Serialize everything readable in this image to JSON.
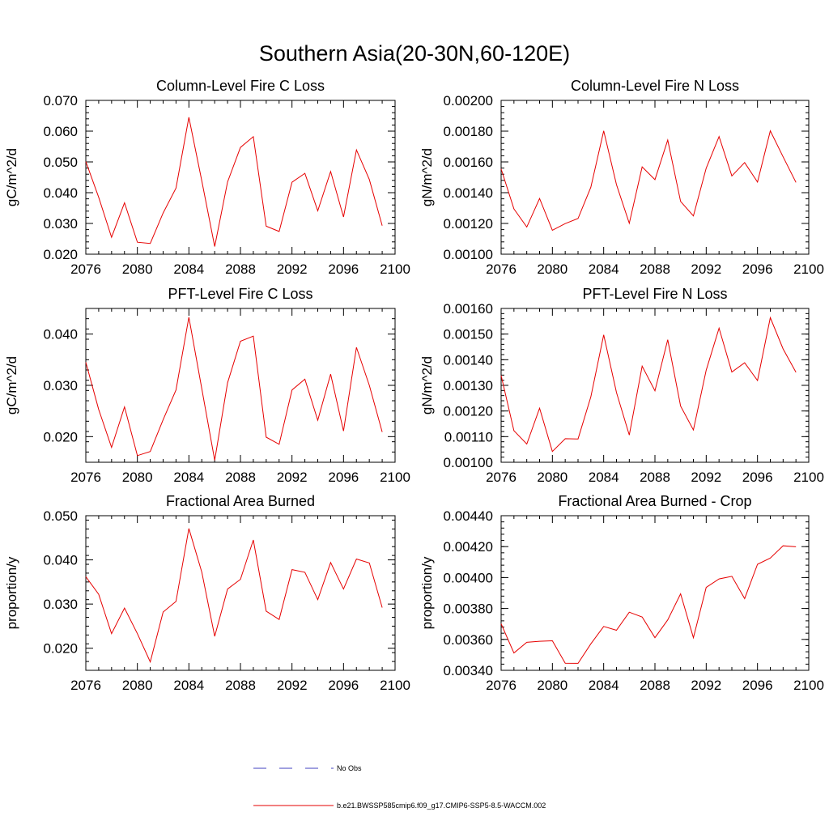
{
  "title": "Southern Asia(20-30N,60-120E)",
  "colors": {
    "series": "#e60000",
    "noobs": "#4040c0",
    "axis": "#000000"
  },
  "legend": {
    "noobs_label": "No Obs",
    "model_label": "b.e21.BWSSP585cmip6.f09_g17.CMIP6-SSP5-8.5-WACCM.002"
  },
  "chart_data": [
    {
      "type": "line",
      "title": "Column-Level Fire C Loss",
      "xlabel": "",
      "ylabel": "gC/m^2/d",
      "xlim": [
        2076,
        2100
      ],
      "ylim": [
        0.02,
        0.07
      ],
      "xticks": [
        2076,
        2080,
        2084,
        2088,
        2092,
        2096,
        2100
      ],
      "yticks": [
        0.02,
        0.03,
        0.04,
        0.05,
        0.06,
        0.07
      ],
      "ytick_labels": [
        "0.020",
        "0.030",
        "0.040",
        "0.050",
        "0.060",
        "0.070"
      ],
      "x": [
        2076,
        2077,
        2078,
        2079,
        2080,
        2081,
        2082,
        2083,
        2084,
        2085,
        2086,
        2087,
        2088,
        2089,
        2090,
        2091,
        2092,
        2093,
        2094,
        2095,
        2096,
        2097,
        2098,
        2099
      ],
      "values": [
        0.0501,
        0.0385,
        0.0255,
        0.0367,
        0.0239,
        0.0235,
        0.0334,
        0.0415,
        0.0645,
        0.0438,
        0.0225,
        0.0435,
        0.0547,
        0.0582,
        0.0291,
        0.0274,
        0.0434,
        0.0463,
        0.0341,
        0.0469,
        0.0321,
        0.0539,
        0.0443,
        0.0293
      ]
    },
    {
      "type": "line",
      "title": "Column-Level Fire N Loss",
      "xlabel": "",
      "ylabel": "gN/m^2/d",
      "xlim": [
        2076,
        2100
      ],
      "ylim": [
        0.001,
        0.002
      ],
      "xticks": [
        2076,
        2080,
        2084,
        2088,
        2092,
        2096,
        2100
      ],
      "yticks": [
        0.001,
        0.0012,
        0.0014,
        0.0016,
        0.0018,
        0.002
      ],
      "ytick_labels": [
        "0.00100",
        "0.00120",
        "0.00140",
        "0.00160",
        "0.00180",
        "0.00200"
      ],
      "x": [
        2076,
        2077,
        2078,
        2079,
        2080,
        2081,
        2082,
        2083,
        2084,
        2085,
        2086,
        2087,
        2088,
        2089,
        2090,
        2091,
        2092,
        2093,
        2094,
        2095,
        2096,
        2097,
        2098,
        2099
      ],
      "values": [
        0.001555,
        0.001295,
        0.001177,
        0.001362,
        0.001156,
        0.001199,
        0.001232,
        0.001435,
        0.001802,
        0.001452,
        0.001201,
        0.001568,
        0.001485,
        0.001742,
        0.001343,
        0.001249,
        0.001559,
        0.001765,
        0.001509,
        0.001596,
        0.001469,
        0.001802,
        0.001633,
        0.001467
      ]
    },
    {
      "type": "line",
      "title": "PFT-Level Fire C Loss",
      "xlabel": "",
      "ylabel": "gC/m^2/d",
      "xlim": [
        2076,
        2100
      ],
      "ylim": [
        0.015,
        0.045
      ],
      "xticks": [
        2076,
        2080,
        2084,
        2088,
        2092,
        2096,
        2100
      ],
      "yticks": [
        0.02,
        0.03,
        0.04
      ],
      "ytick_labels": [
        "0.020",
        "0.030",
        "0.040"
      ],
      "x": [
        2076,
        2077,
        2078,
        2079,
        2080,
        2081,
        2082,
        2083,
        2084,
        2085,
        2086,
        2087,
        2088,
        2089,
        2090,
        2091,
        2092,
        2093,
        2094,
        2095,
        2096,
        2097,
        2098,
        2099
      ],
      "values": [
        0.0345,
        0.0253,
        0.0179,
        0.0258,
        0.0163,
        0.0171,
        0.0233,
        0.0291,
        0.0433,
        0.0293,
        0.0154,
        0.0305,
        0.0386,
        0.0396,
        0.0199,
        0.0185,
        0.0291,
        0.0312,
        0.0232,
        0.0322,
        0.0211,
        0.0374,
        0.03,
        0.0209
      ]
    },
    {
      "type": "line",
      "title": "PFT-Level Fire N Loss",
      "xlabel": "",
      "ylabel": "gN/m^2/d",
      "xlim": [
        2076,
        2100
      ],
      "ylim": [
        0.001,
        0.0016
      ],
      "xticks": [
        2076,
        2080,
        2084,
        2088,
        2092,
        2096,
        2100
      ],
      "yticks": [
        0.001,
        0.0011,
        0.0012,
        0.0013,
        0.0014,
        0.0015,
        0.0016
      ],
      "ytick_labels": [
        "0.00100",
        "0.00110",
        "0.00120",
        "0.00130",
        "0.00140",
        "0.00150",
        "0.00160"
      ],
      "x": [
        2076,
        2077,
        2078,
        2079,
        2080,
        2081,
        2082,
        2083,
        2084,
        2085,
        2086,
        2087,
        2088,
        2089,
        2090,
        2091,
        2092,
        2093,
        2094,
        2095,
        2096,
        2097,
        2098,
        2099
      ],
      "values": [
        0.001339,
        0.001123,
        0.001071,
        0.001211,
        0.001042,
        0.001092,
        0.001091,
        0.001255,
        0.001497,
        0.001272,
        0.001106,
        0.001375,
        0.001279,
        0.001478,
        0.001219,
        0.001126,
        0.001359,
        0.001523,
        0.001352,
        0.001388,
        0.001319,
        0.001564,
        0.001442,
        0.001351
      ]
    },
    {
      "type": "line",
      "title": "Fractional Area Burned",
      "xlabel": "",
      "ylabel": "proportion/y",
      "xlim": [
        2076,
        2100
      ],
      "ylim": [
        0.015,
        0.05
      ],
      "xticks": [
        2076,
        2080,
        2084,
        2088,
        2092,
        2096,
        2100
      ],
      "yticks": [
        0.02,
        0.03,
        0.04,
        0.05
      ],
      "ytick_labels": [
        "0.020",
        "0.030",
        "0.040",
        "0.050"
      ],
      "x": [
        2076,
        2077,
        2078,
        2079,
        2080,
        2081,
        2082,
        2083,
        2084,
        2085,
        2086,
        2087,
        2088,
        2089,
        2090,
        2091,
        2092,
        2093,
        2094,
        2095,
        2096,
        2097,
        2098,
        2099
      ],
      "values": [
        0.0362,
        0.0322,
        0.0233,
        0.0291,
        0.0233,
        0.0169,
        0.0282,
        0.0306,
        0.0471,
        0.0372,
        0.0227,
        0.0334,
        0.0356,
        0.0445,
        0.0284,
        0.0265,
        0.0378,
        0.0372,
        0.031,
        0.0394,
        0.0334,
        0.0402,
        0.0393,
        0.0292
      ]
    },
    {
      "type": "line",
      "title": "Fractional Area Burned - Crop",
      "xlabel": "",
      "ylabel": "proportion/y",
      "xlim": [
        2076,
        2100
      ],
      "ylim": [
        0.0034,
        0.0044
      ],
      "xticks": [
        2076,
        2080,
        2084,
        2088,
        2092,
        2096,
        2100
      ],
      "yticks": [
        0.0034,
        0.0036,
        0.0038,
        0.004,
        0.0042,
        0.0044
      ],
      "ytick_labels": [
        "0.00340",
        "0.00360",
        "0.00380",
        "0.00400",
        "0.00420",
        "0.00440"
      ],
      "x": [
        2076,
        2077,
        2078,
        2079,
        2080,
        2081,
        2082,
        2083,
        2084,
        2085,
        2086,
        2087,
        2088,
        2089,
        2090,
        2091,
        2092,
        2093,
        2094,
        2095,
        2096,
        2097,
        2098,
        2099
      ],
      "values": [
        0.003701,
        0.003512,
        0.003581,
        0.003588,
        0.003591,
        0.003446,
        0.003445,
        0.003571,
        0.003684,
        0.003659,
        0.003776,
        0.003745,
        0.003611,
        0.003726,
        0.003895,
        0.003611,
        0.003936,
        0.003991,
        0.004008,
        0.003864,
        0.004086,
        0.004126,
        0.004205,
        0.004199
      ]
    }
  ]
}
